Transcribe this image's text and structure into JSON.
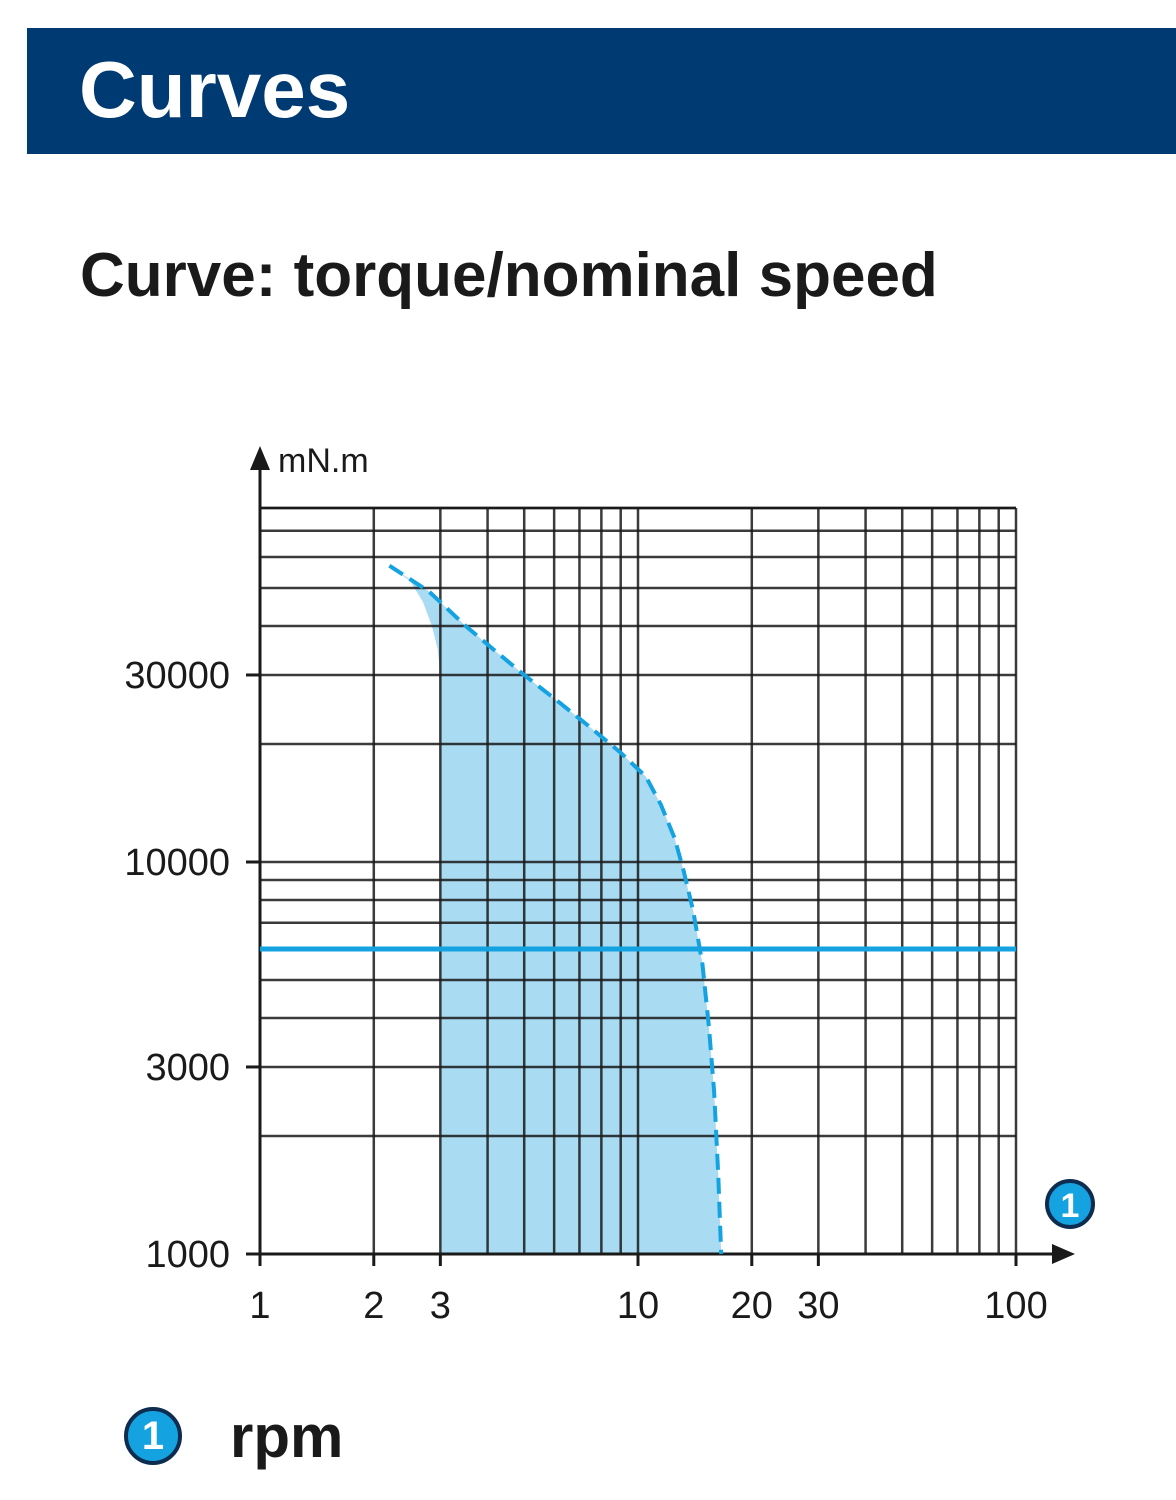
{
  "header": {
    "title": "Curves"
  },
  "subtitle": "Curve: torque/nominal speed",
  "legend": {
    "marker": "1",
    "label": "rpm"
  },
  "colors": {
    "header_bg": "#003a73",
    "accent": "#14a3e0",
    "fill": "#a9dcf3",
    "grid": "#1a1a1a"
  },
  "chart_data": {
    "type": "area",
    "x_scale": "log",
    "y_scale": "log",
    "xlim": [
      1,
      100
    ],
    "ylim": [
      1000,
      80000
    ],
    "ylabel": "mN.m",
    "x_axis_marker": "1",
    "x_ticks": [
      {
        "value": 1,
        "label": "1"
      },
      {
        "value": 2,
        "label": "2"
      },
      {
        "value": 3,
        "label": "3"
      },
      {
        "value": 10,
        "label": "10"
      },
      {
        "value": 20,
        "label": "20"
      },
      {
        "value": 30,
        "label": "30"
      },
      {
        "value": 100,
        "label": "100"
      }
    ],
    "y_ticks": [
      {
        "value": 1000,
        "label": "1000"
      },
      {
        "value": 3000,
        "label": "3000"
      },
      {
        "value": 10000,
        "label": "10000"
      },
      {
        "value": 30000,
        "label": "30000"
      }
    ],
    "series": [
      {
        "style": "dashed",
        "x": [
          2.2,
          2.8,
          3.5,
          4.2,
          5.0,
          6.2,
          7.5,
          9.0,
          10.5,
          11.5,
          12.5,
          13.2,
          14.0,
          14.8,
          15.4,
          15.9,
          16.3,
          16.6
        ],
        "y": [
          57000,
          49000,
          40000,
          34500,
          30000,
          25500,
          22000,
          19000,
          16500,
          14000,
          11500,
          9500,
          7500,
          5500,
          3800,
          2600,
          1600,
          1000
        ]
      },
      {
        "style": "solid",
        "x": [
          1,
          100
        ],
        "y": [
          6000,
          6000
        ]
      }
    ],
    "shaded_region": {
      "left_edge_x": [
        3.0,
        3.0,
        2.95,
        2.85,
        2.7,
        2.5,
        2.2
      ],
      "left_edge_y": [
        1000,
        30000,
        35000,
        40000,
        46000,
        52000,
        57000
      ]
    },
    "grid": true
  }
}
